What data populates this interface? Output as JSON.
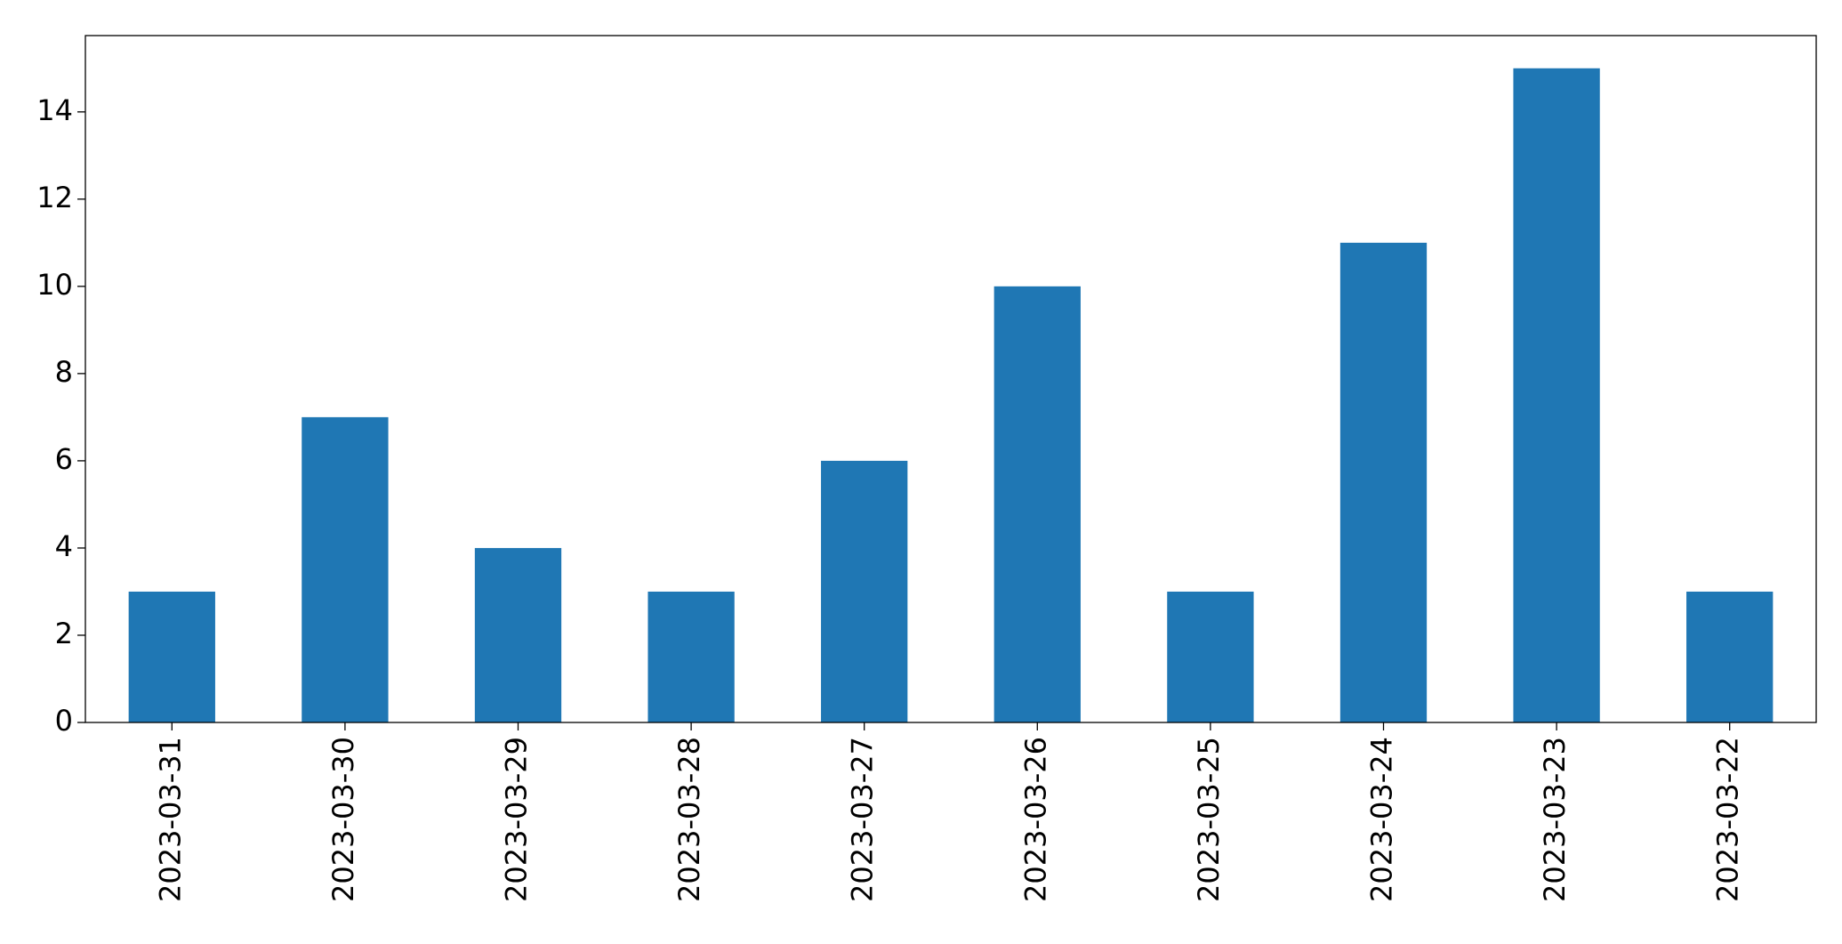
{
  "chart_data": {
    "type": "bar",
    "categories": [
      "2023-03-31",
      "2023-03-30",
      "2023-03-29",
      "2023-03-28",
      "2023-03-27",
      "2023-03-26",
      "2023-03-25",
      "2023-03-24",
      "2023-03-23",
      "2023-03-22"
    ],
    "values": [
      3,
      7,
      4,
      3,
      6,
      10,
      3,
      11,
      15,
      3
    ],
    "color": "#1f77b4",
    "ylim": [
      0,
      15.75
    ],
    "yticks": [
      0,
      2,
      4,
      6,
      8,
      10,
      12,
      14
    ],
    "grid": false
  }
}
